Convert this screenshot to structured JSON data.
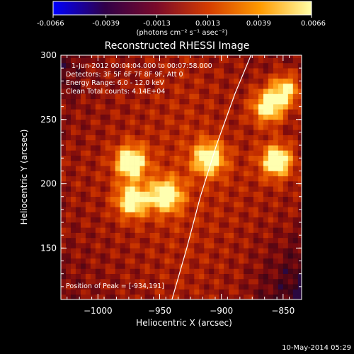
{
  "chart_data": {
    "type": "heatmap",
    "title": "Reconstructed RHESSI Image",
    "xlabel": "Heliocentric X (arcsec)",
    "ylabel": "Heliocentric Y (arcsec)",
    "xlim": [
      -1030,
      -835
    ],
    "ylim": [
      110,
      300
    ],
    "x_ticks": [
      -1000,
      -950,
      -900,
      -850
    ],
    "y_ticks": [
      150,
      200,
      250,
      300
    ],
    "colorbar": {
      "min": -0.0066,
      "max": 0.0066,
      "ticks": [
        "-0.0066",
        "-0.0039",
        "-0.0013",
        "0.0013",
        "0.0039",
        "0.0066"
      ],
      "units": "(photons cm⁻² s⁻¹ asec⁻²)",
      "colors": [
        "#0000ff",
        "#300048",
        "#7a0a2a",
        "#d43c00",
        "#ff9a00",
        "#ffffa8"
      ]
    },
    "sources": [
      {
        "x": -973,
        "y": 217,
        "intensity": 0.0066
      },
      {
        "x": -972,
        "y": 187,
        "intensity": 0.0062
      },
      {
        "x": -945,
        "y": 191,
        "intensity": 0.0066
      },
      {
        "x": -910,
        "y": 220,
        "intensity": 0.0062
      },
      {
        "x": -855,
        "y": 218,
        "intensity": 0.0066
      },
      {
        "x": -862,
        "y": 260,
        "intensity": 0.006
      },
      {
        "x": -848,
        "y": 273,
        "intensity": 0.0052
      }
    ],
    "annotations": {
      "time": "1-Jun-2012 00:04:04.000 to 00:07:58.000",
      "detectors": "Detectors: 3F 5F 6F 7F 8F 9F, Att 0",
      "energy": "Energy Range: 6.0 - 12.0 keV",
      "clean": "Clean     Total counts: 4.14E+04",
      "peak": "Position of Peak = [-934,191]"
    },
    "limb": [
      [
        -940,
        110
      ],
      [
        -928,
        150
      ],
      [
        -917,
        190
      ],
      [
        -904,
        230
      ],
      [
        -889,
        270
      ],
      [
        -876,
        300
      ]
    ],
    "footer": "10-May-2014 05:29"
  }
}
